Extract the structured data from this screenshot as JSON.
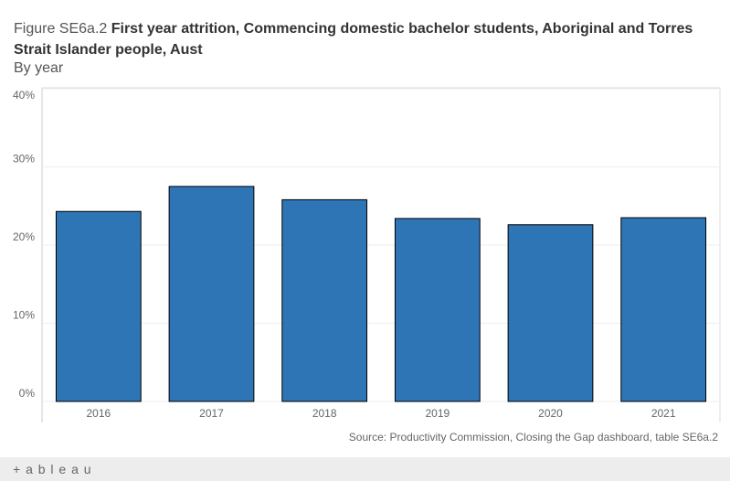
{
  "chart_data": {
    "type": "bar",
    "title_prefix": "Figure SE6a.2",
    "title": "First year attrition, Commencing domestic bachelor students, Aboriginal and Torres Strait Islander people, Aust",
    "subtitle": "By year",
    "categories": [
      "2016",
      "2017",
      "2018",
      "2019",
      "2020",
      "2021"
    ],
    "values": [
      24.3,
      27.5,
      25.8,
      23.4,
      22.6,
      23.5
    ],
    "color": "#2e75b6",
    "ylim": [
      0,
      40
    ],
    "yticks": [
      {
        "value": 0,
        "label": "0%"
      },
      {
        "value": 10,
        "label": "10%"
      },
      {
        "value": 20,
        "label": "20%"
      },
      {
        "value": 30,
        "label": "30%"
      },
      {
        "value": 40,
        "label": "40%"
      }
    ],
    "grid": true,
    "source": "Source: Productivity Commission, Closing the Gap dashboard, table SE6a.2"
  },
  "footer": {
    "logo": "+ a b l e a u"
  }
}
